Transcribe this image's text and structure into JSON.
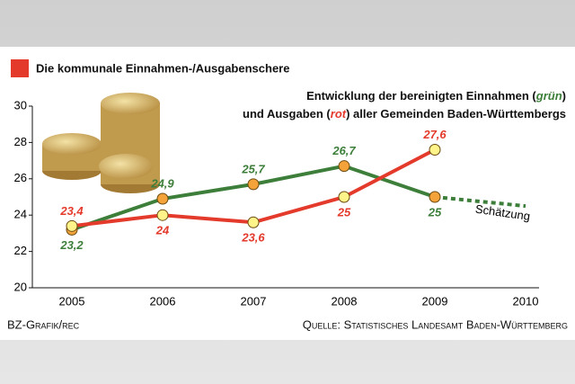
{
  "chart_data": {
    "type": "line",
    "title": "Die kommunale Einnahmen-/Ausgabenschere",
    "subtitle": [
      [
        "Entwicklung der bereinigten Einnahmen (",
        "grün",
        ")"
      ],
      [
        "und Ausgaben (",
        "rot",
        ") aller Gemeinden Baden-Württembergs"
      ]
    ],
    "categories": [
      "2005",
      "2006",
      "2007",
      "2008",
      "2009",
      "2010"
    ],
    "series": [
      {
        "name": "Einnahmen",
        "color": "#3d7f3a",
        "marker_color": "#f3a33a",
        "values": [
          23.2,
          24.9,
          25.7,
          26.7,
          25,
          null
        ],
        "value_labels": [
          "23,2",
          "24,9",
          "25,7",
          "26,7",
          "25",
          null
        ]
      },
      {
        "name": "Ausgaben",
        "color": "#e43a2c",
        "marker_color": "#fff38a",
        "values": [
          23.4,
          24,
          23.6,
          25,
          27.6,
          null
        ],
        "value_labels": [
          "23,4",
          "24",
          "23,6",
          "25",
          "27,6",
          null
        ]
      },
      {
        "name": "Schätzung",
        "color": "#3d7f3a",
        "dashed": true,
        "values": [
          null,
          null,
          null,
          null,
          25,
          24.5
        ]
      }
    ],
    "ylim": [
      20,
      30
    ],
    "yticks": [
      20,
      22,
      24,
      26,
      28,
      30
    ],
    "grid": false,
    "credit": "BZ-Grafik/rec",
    "source": "Quelle: Statistisches Landesamt Baden-Württemberg"
  }
}
